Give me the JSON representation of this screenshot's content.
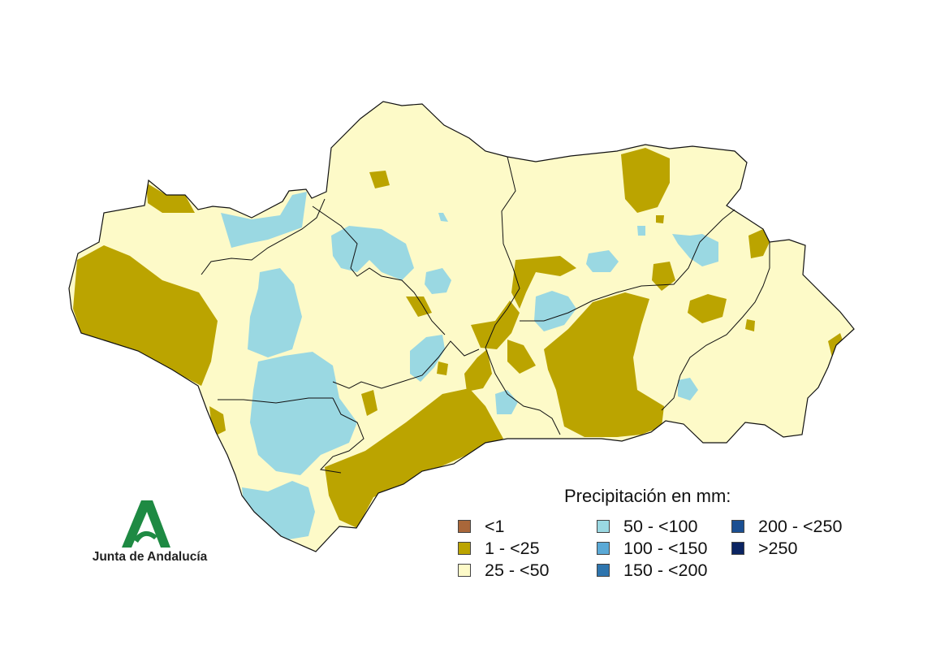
{
  "legend": {
    "title": "Precipitación en mm:",
    "items": [
      {
        "label": "<1",
        "color": "#a9673a"
      },
      {
        "label": "1 - <25",
        "color": "#bba400"
      },
      {
        "label": "25 - <50",
        "color": "#fdfac8"
      },
      {
        "label": "50 - <100",
        "color": "#9ad8e2"
      },
      {
        "label": "100 - <150",
        "color": "#5aa9d6"
      },
      {
        "label": "150 - <200",
        "color": "#2e75ae"
      },
      {
        "label": "200 - <250",
        "color": "#1b4f92"
      },
      {
        "label": ">250",
        "color": "#0b2462"
      }
    ]
  },
  "logo": {
    "text": "Junta de Andalucía",
    "color": "#1e8a43"
  }
}
